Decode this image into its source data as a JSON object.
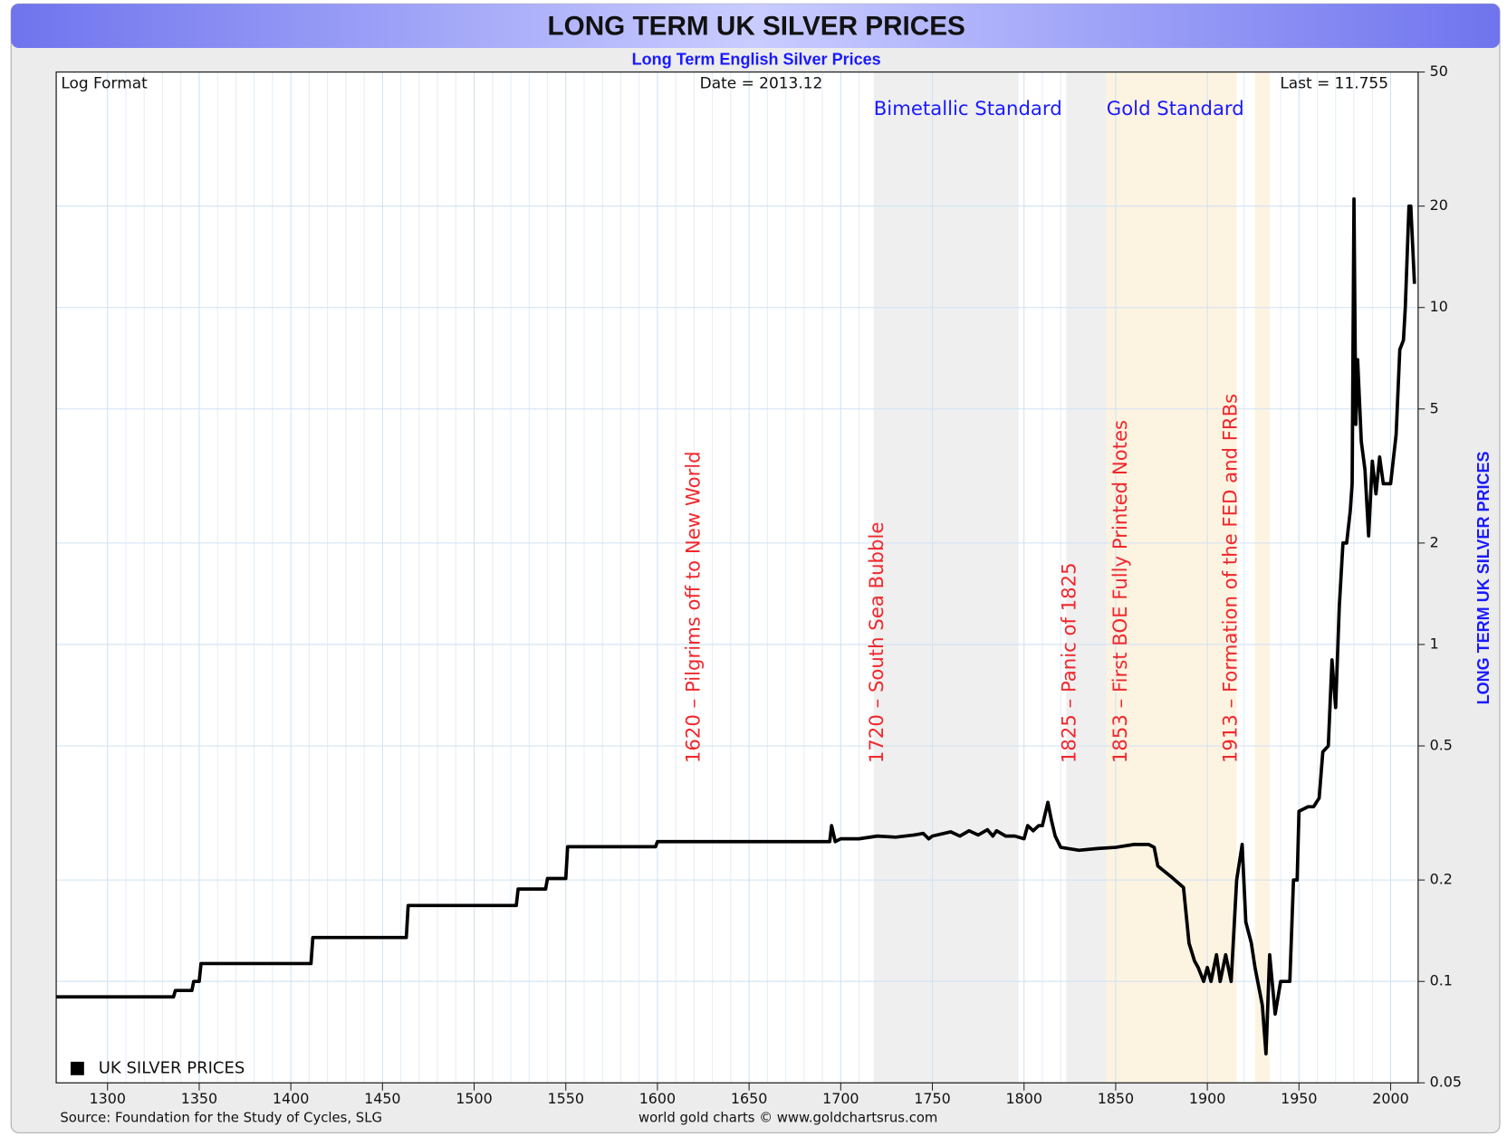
{
  "chart_data": {
    "type": "line",
    "title": "LONG TERM UK SILVER PRICES",
    "subtitle": "Long Term English Silver Prices",
    "corner_left": "Log Format",
    "corner_center": "Date = 2013.12",
    "corner_right": "Last = 11.755",
    "y_label": "LONG TERM UK SILVER PRICES",
    "source": "Source: Foundation for the Study of Cycles, SLG",
    "credit": "world gold charts © www.goldchartsrus.com",
    "log_y": true,
    "grid": true,
    "legend": "bottom-left",
    "xlim": [
      1272,
      2015
    ],
    "xticks": [
      1300,
      1350,
      1400,
      1450,
      1500,
      1550,
      1600,
      1650,
      1700,
      1750,
      1800,
      1850,
      1900,
      1950,
      2000
    ],
    "ylim": [
      0.05,
      50
    ],
    "yticks": [
      0.05,
      0.1,
      0.2,
      0.5,
      1,
      2,
      5,
      10,
      20,
      50
    ],
    "bands": [
      {
        "start": 1718,
        "end": 1797,
        "color": "#efefef",
        "label": "Bimetallic Standard"
      },
      {
        "start": 1823,
        "end": 1845,
        "color": "#efefef"
      },
      {
        "start": 1845,
        "end": 1916,
        "color": "#fdf3e1",
        "label": "Gold Standard"
      },
      {
        "start": 1926,
        "end": 1934,
        "color": "#fdf3e1"
      }
    ],
    "annotations": [
      {
        "x": 1620,
        "text": "1620 – Pilgrims off to New World"
      },
      {
        "x": 1720,
        "text": "1720 – South Sea Bubble"
      },
      {
        "x": 1825,
        "text": "1825 – Panic of 1825"
      },
      {
        "x": 1853,
        "text": "1853 – First BOE Fully Printed Notes"
      },
      {
        "x": 1913,
        "text": "1913 – Formation of the FED and FRBs"
      }
    ],
    "x": [
      1272,
      1336,
      1337,
      1346,
      1347,
      1350,
      1351,
      1411,
      1412,
      1463,
      1464,
      1523,
      1524,
      1539,
      1540,
      1550,
      1551,
      1599,
      1600,
      1694,
      1695,
      1697,
      1700,
      1710,
      1720,
      1730,
      1740,
      1745,
      1748,
      1750,
      1760,
      1765,
      1770,
      1775,
      1780,
      1783,
      1785,
      1790,
      1795,
      1800,
      1802,
      1805,
      1808,
      1810,
      1813,
      1815,
      1817,
      1820,
      1830,
      1840,
      1850,
      1860,
      1868,
      1871,
      1873,
      1880,
      1887,
      1890,
      1893,
      1895,
      1898,
      1900,
      1902,
      1905,
      1907,
      1910,
      1913,
      1916,
      1919,
      1921,
      1924,
      1926,
      1930,
      1932,
      1934,
      1937,
      1940,
      1945,
      1947,
      1949,
      1950,
      1955,
      1958,
      1961,
      1963,
      1966,
      1968,
      1970,
      1972,
      1974,
      1976,
      1978,
      1979,
      1980,
      1981,
      1982,
      1984,
      1986,
      1988,
      1990,
      1992,
      1994,
      1996,
      1998,
      2000,
      2003,
      2005,
      2007,
      2008,
      2010,
      2011,
      2013
    ],
    "series": [
      {
        "name": "UK SILVER PRICES",
        "color": "#000000",
        "values": [
          0.09,
          0.09,
          0.094,
          0.094,
          0.1,
          0.1,
          0.113,
          0.113,
          0.135,
          0.135,
          0.168,
          0.168,
          0.188,
          0.188,
          0.202,
          0.202,
          0.251,
          0.251,
          0.26,
          0.26,
          0.29,
          0.26,
          0.265,
          0.265,
          0.27,
          0.268,
          0.272,
          0.275,
          0.265,
          0.27,
          0.278,
          0.27,
          0.28,
          0.272,
          0.282,
          0.27,
          0.28,
          0.27,
          0.27,
          0.265,
          0.29,
          0.28,
          0.29,
          0.29,
          0.34,
          0.3,
          0.27,
          0.25,
          0.245,
          0.248,
          0.25,
          0.255,
          0.255,
          0.25,
          0.22,
          0.205,
          0.19,
          0.13,
          0.115,
          0.11,
          0.1,
          0.11,
          0.1,
          0.12,
          0.1,
          0.12,
          0.1,
          0.2,
          0.255,
          0.15,
          0.13,
          0.11,
          0.085,
          0.061,
          0.12,
          0.08,
          0.1,
          0.1,
          0.2,
          0.2,
          0.32,
          0.33,
          0.33,
          0.35,
          0.48,
          0.5,
          0.9,
          0.65,
          1.3,
          2.0,
          2.0,
          2.5,
          3.0,
          21,
          4.5,
          7,
          4,
          3.3,
          2.1,
          3.5,
          2.8,
          3.6,
          3.0,
          3.0,
          3.0,
          4.2,
          7.5,
          8,
          10,
          20,
          20,
          11.755
        ]
      }
    ]
  }
}
